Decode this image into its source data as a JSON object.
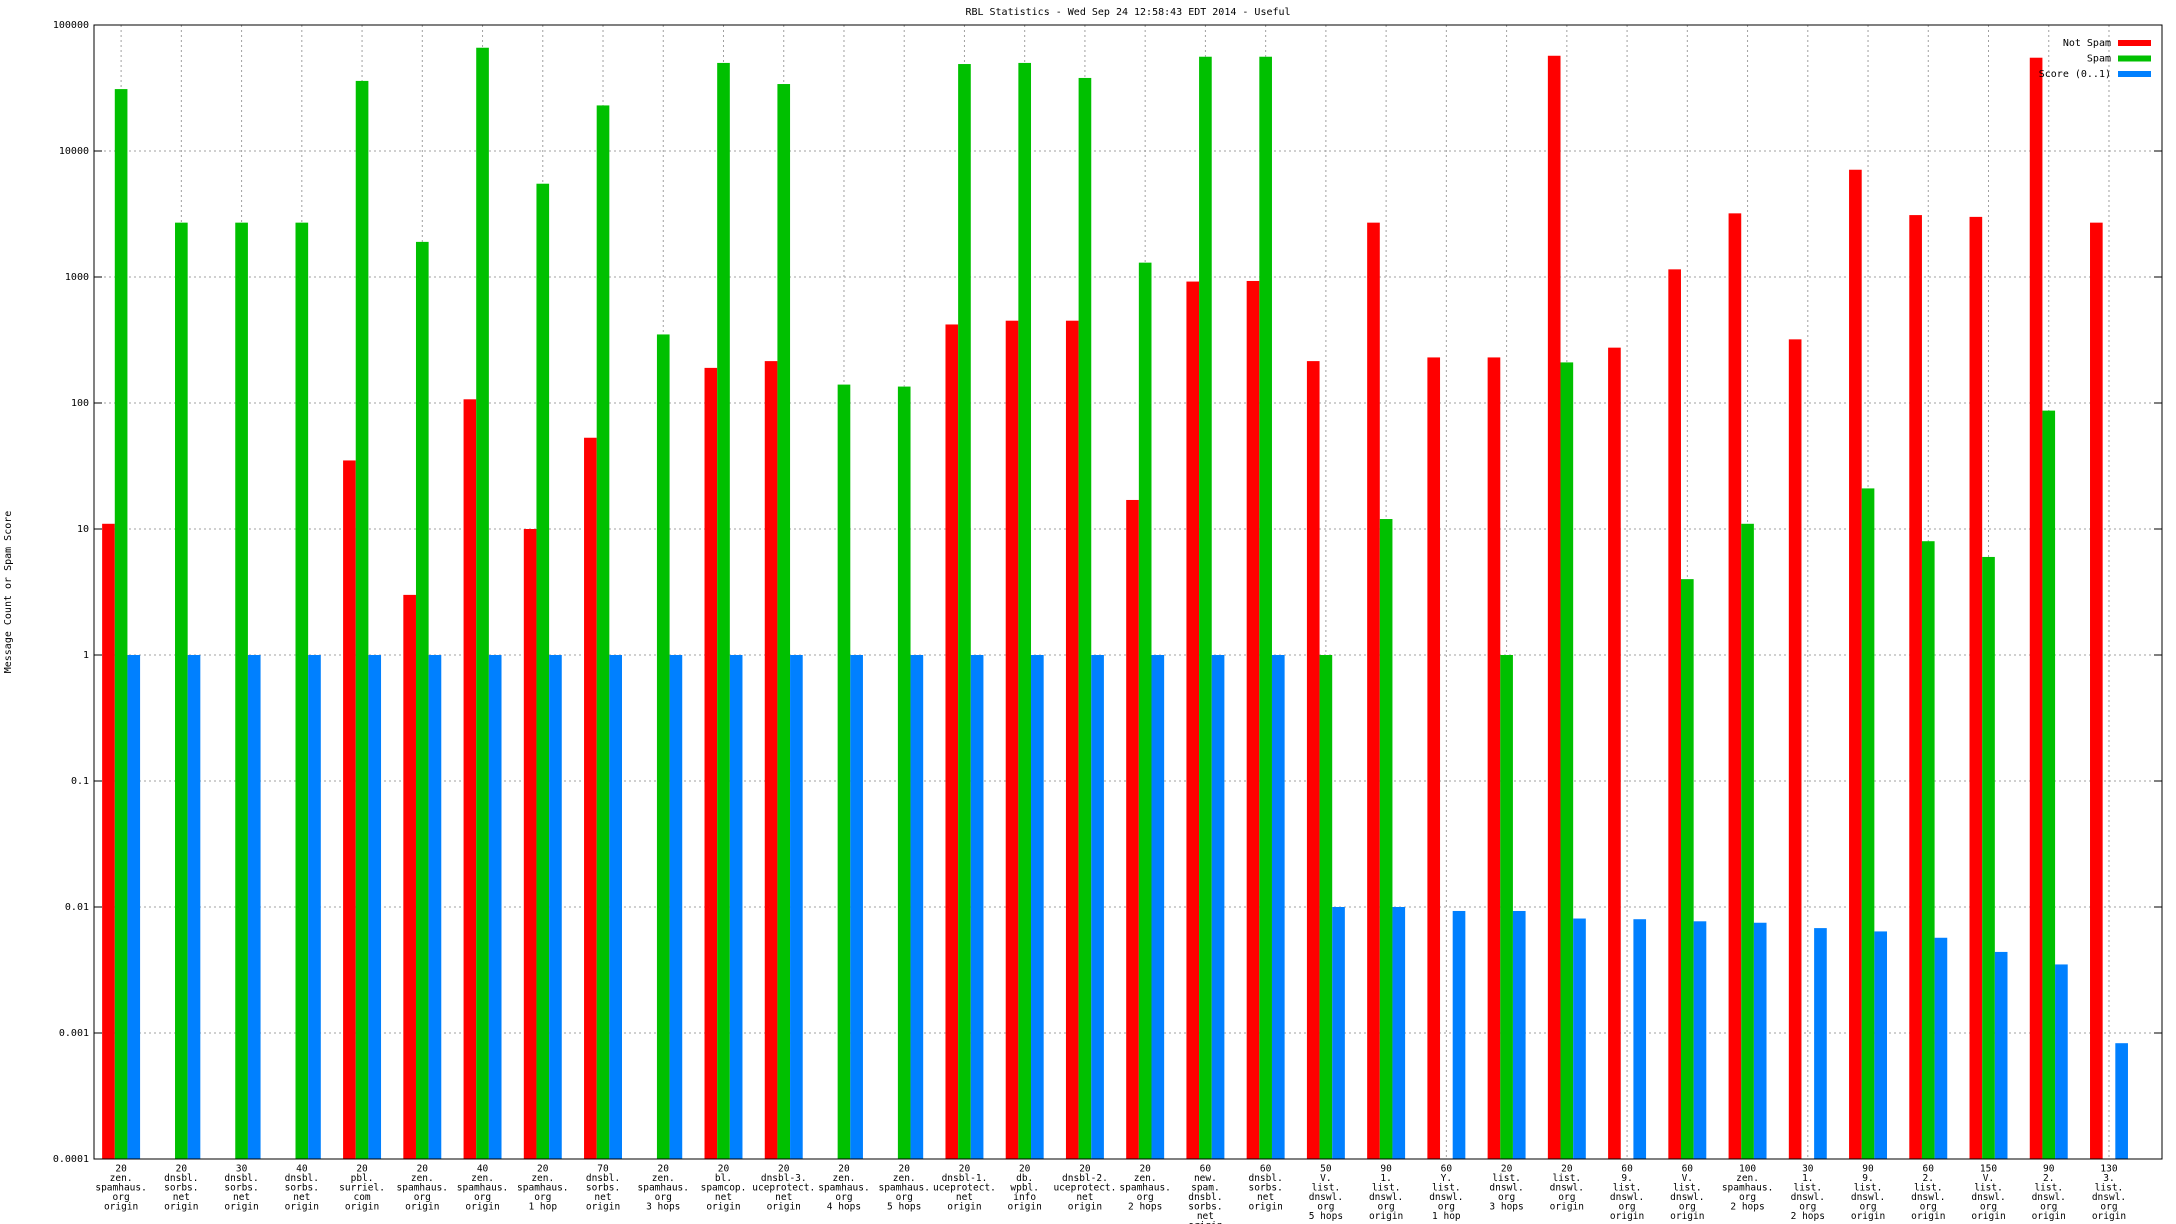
{
  "chart_data": {
    "type": "bar",
    "title": "RBL Statistics - Wed Sep 24 12:58:43 EDT 2014 - Useful",
    "y_label": "Message Count or Spam Score",
    "categories": [
      [
        "20",
        "zen.",
        "spamhaus.",
        "org",
        "origin"
      ],
      [
        "20",
        "dnsbl.",
        "sorbs.",
        "net",
        "origin"
      ],
      [
        "30",
        "dnsbl.",
        "sorbs.",
        "net",
        "origin"
      ],
      [
        "40",
        "dnsbl.",
        "sorbs.",
        "net",
        "origin"
      ],
      [
        "20",
        "pbl.",
        "surriel.",
        "com",
        "origin"
      ],
      [
        "20",
        "zen.",
        "spamhaus.",
        "org",
        "origin"
      ],
      [
        "40",
        "zen.",
        "spamhaus.",
        "org",
        "origin"
      ],
      [
        "20",
        "zen.",
        "spamhaus.",
        "org",
        "1 hop"
      ],
      [
        "70",
        "dnsbl.",
        "sorbs.",
        "net",
        "origin"
      ],
      [
        "20",
        "zen.",
        "spamhaus.",
        "org",
        "3 hops"
      ],
      [
        "20",
        "bl.",
        "spamcop.",
        "net",
        "origin"
      ],
      [
        "20",
        "dnsbl-3.",
        "uceprotect.",
        "net",
        "origin"
      ],
      [
        "20",
        "zen.",
        "spamhaus.",
        "org",
        "4 hops"
      ],
      [
        "20",
        "zen.",
        "spamhaus.",
        "org",
        "5 hops"
      ],
      [
        "20",
        "dnsbl-1.",
        "uceprotect.",
        "net",
        "origin"
      ],
      [
        "20",
        "db.",
        "wpbl.",
        "info",
        "origin"
      ],
      [
        "20",
        "dnsbl-2.",
        "uceprotect.",
        "net",
        "origin"
      ],
      [
        "20",
        "zen.",
        "spamhaus.",
        "org",
        "2 hops"
      ],
      [
        "60",
        "new.",
        "spam.",
        "dnsbl.",
        "sorbs.",
        "net",
        "origin"
      ],
      [
        "60",
        "dnsbl.",
        "sorbs.",
        "net",
        "origin"
      ],
      [
        "50",
        "V.",
        "list.",
        "dnswl.",
        "org",
        "5 hops"
      ],
      [
        "90",
        "1.",
        "list.",
        "dnswl.",
        "org",
        "origin"
      ],
      [
        "60",
        "Y.",
        "list.",
        "dnswl.",
        "org",
        "1 hop"
      ],
      [
        "20",
        "list.",
        "dnswl.",
        "org",
        "3 hops"
      ],
      [
        "20",
        "list.",
        "dnswl.",
        "org",
        "origin"
      ],
      [
        "60",
        "9.",
        "list.",
        "dnswl.",
        "org",
        "origin"
      ],
      [
        "60",
        "V.",
        "list.",
        "dnswl.",
        "org",
        "origin"
      ],
      [
        "100",
        "zen.",
        "spamhaus.",
        "org",
        "2 hops"
      ],
      [
        "30",
        "1.",
        "list.",
        "dnswl.",
        "org",
        "2 hops"
      ],
      [
        "90",
        "9.",
        "list.",
        "dnswl.",
        "org",
        "origin"
      ],
      [
        "60",
        "2.",
        "list.",
        "dnswl.",
        "org",
        "origin"
      ],
      [
        "150",
        "V.",
        "list.",
        "dnswl.",
        "org",
        "origin"
      ],
      [
        "90",
        "2.",
        "list.",
        "dnswl.",
        "org",
        "origin"
      ],
      [
        "130",
        "3.",
        "list.",
        "dnswl.",
        "org",
        "origin"
      ]
    ],
    "series": [
      {
        "name": "Not Spam",
        "color": "#ff0000",
        "values": [
          11,
          null,
          null,
          null,
          35,
          3,
          107,
          10,
          53,
          null,
          190,
          215,
          null,
          null,
          420,
          450,
          450,
          17,
          920,
          930,
          215,
          2700,
          230,
          230,
          57000,
          275,
          1150,
          3200,
          320,
          7100,
          3100,
          3000,
          55000,
          2700
        ]
      },
      {
        "name": "Spam",
        "color": "#00c000",
        "values": [
          31000,
          2700,
          2700,
          2700,
          36000,
          1900,
          66000,
          5500,
          23000,
          350,
          50000,
          34000,
          140,
          135,
          49000,
          50000,
          38000,
          1300,
          56000,
          56000,
          1,
          12,
          null,
          1,
          210,
          null,
          4,
          11,
          null,
          21,
          8,
          6,
          87,
          null
        ]
      },
      {
        "name": "Score (0..1)",
        "color": "#0080ff",
        "values": [
          1,
          1,
          1,
          1,
          1,
          1,
          1,
          1,
          1,
          1,
          1,
          1,
          1,
          1,
          1,
          1,
          1,
          1,
          1,
          1,
          0.01,
          0.01,
          0.0093,
          0.0093,
          0.0081,
          0.008,
          0.0077,
          0.0075,
          0.0068,
          0.0064,
          0.0057,
          0.0044,
          0.0035,
          0.00083
        ]
      }
    ],
    "ylim": [
      0.0001,
      100000
    ],
    "yticks": [
      0.0001,
      0.001,
      0.01,
      0.1,
      1,
      10,
      100,
      1000,
      10000,
      100000
    ],
    "log_scale": true,
    "grid": true,
    "legend": "top right"
  }
}
